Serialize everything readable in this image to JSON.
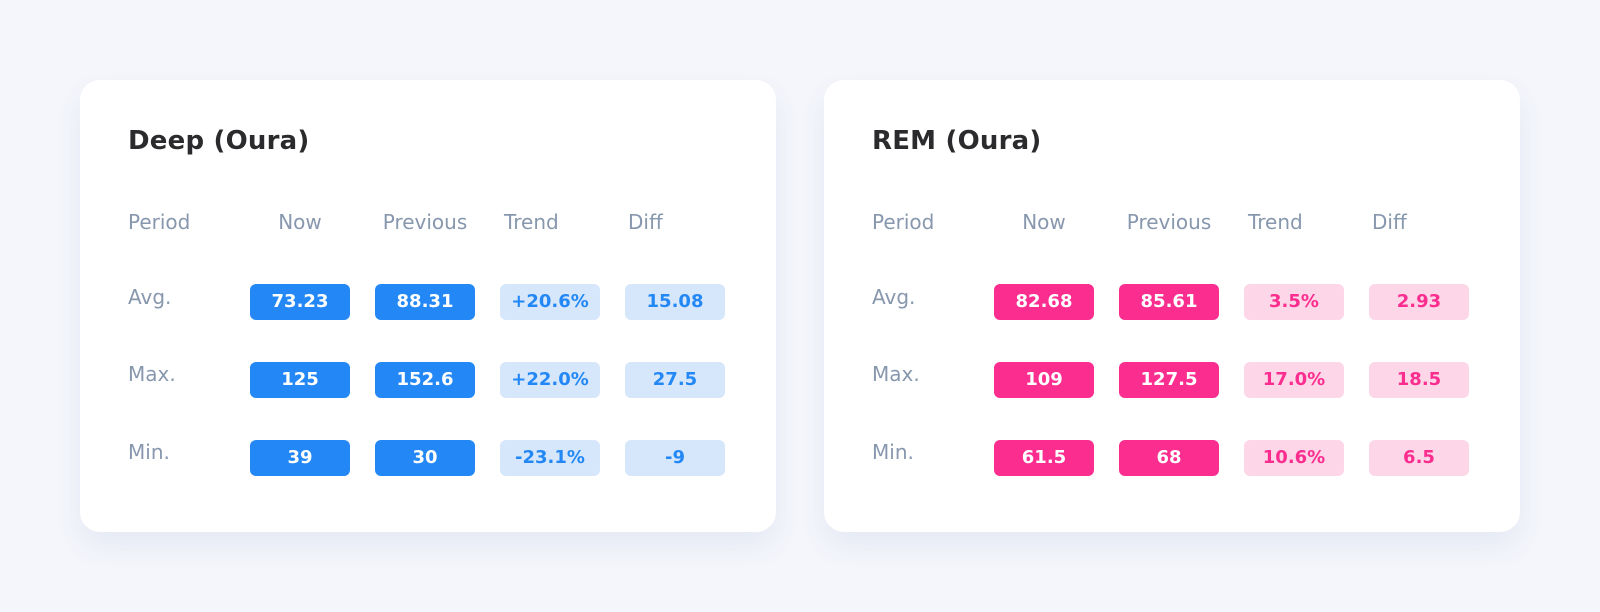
{
  "cards": [
    {
      "title": "Deep (Oura)",
      "headers": [
        "Period",
        "Now",
        "Previous",
        "Trend",
        "Diff"
      ],
      "rows": [
        {
          "label": "Avg.",
          "now": "73.23",
          "previous": "88.31",
          "trend": "+20.6%",
          "diff": "15.08"
        },
        {
          "label": "Max.",
          "now": "125",
          "previous": "152.6",
          "trend": "+22.0%",
          "diff": "27.5"
        },
        {
          "label": "Min.",
          "now": "39",
          "previous": "30",
          "trend": "-23.1%",
          "diff": "-9"
        }
      ],
      "accent_color": "#2388f5",
      "soft_color": "#d6e7fb"
    },
    {
      "title": "REM (Oura)",
      "headers": [
        "Period",
        "Now",
        "Previous",
        "Trend",
        "Diff"
      ],
      "rows": [
        {
          "label": "Avg.",
          "now": "82.68",
          "previous": "85.61",
          "trend": "3.5%",
          "diff": "2.93"
        },
        {
          "label": "Max.",
          "now": "109",
          "previous": "127.5",
          "trend": "17.0%",
          "diff": "18.5"
        },
        {
          "label": "Min.",
          "now": "61.5",
          "previous": "68",
          "trend": "10.6%",
          "diff": "6.5"
        }
      ],
      "accent_color": "#fb2d8f",
      "soft_color": "#fdd6e8"
    }
  ]
}
